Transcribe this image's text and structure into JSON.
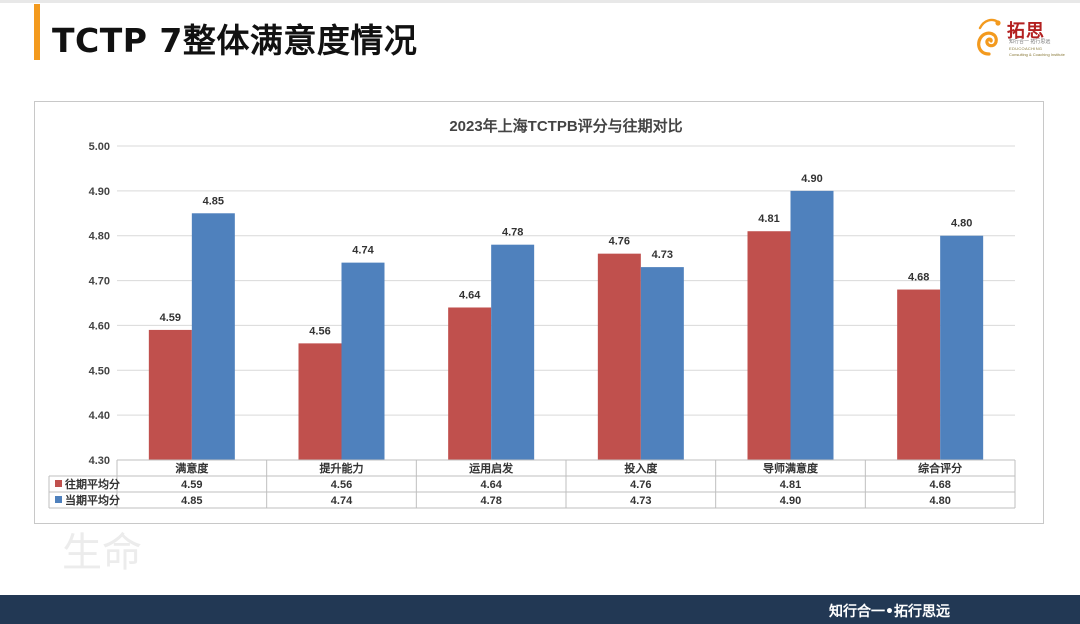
{
  "slide": {
    "title": "TCTP 7整体满意度情况",
    "footer": "知行合一•拓行思远"
  },
  "logo": {
    "name": "拓思",
    "sub": "知行合一 拓行思远",
    "en_line1": "EDUCOACHING",
    "en_line2": "Consulting & Coaching Institute"
  },
  "watermark": [
    "生命"
  ],
  "colors": {
    "series_past": "#c0504d",
    "series_current": "#4f81bd",
    "accent": "#f39a1e",
    "footer": "#223854"
  },
  "chart_data": {
    "type": "bar",
    "title": "2023年上海TCTPB评分与往期对比",
    "categories": [
      "满意度",
      "提升能力",
      "运用启发",
      "投入度",
      "导师满意度",
      "综合评分"
    ],
    "series": [
      {
        "name": "往期平均分",
        "values": [
          4.59,
          4.56,
          4.64,
          4.76,
          4.81,
          4.68
        ]
      },
      {
        "name": "当期平均分",
        "values": [
          4.85,
          4.74,
          4.78,
          4.73,
          4.9,
          4.8
        ]
      }
    ],
    "ylim": [
      4.3,
      5.0
    ],
    "yticks": [
      4.3,
      4.4,
      4.5,
      4.6,
      4.7,
      4.8,
      4.9,
      5.0
    ],
    "grid": true,
    "data_table": true
  }
}
